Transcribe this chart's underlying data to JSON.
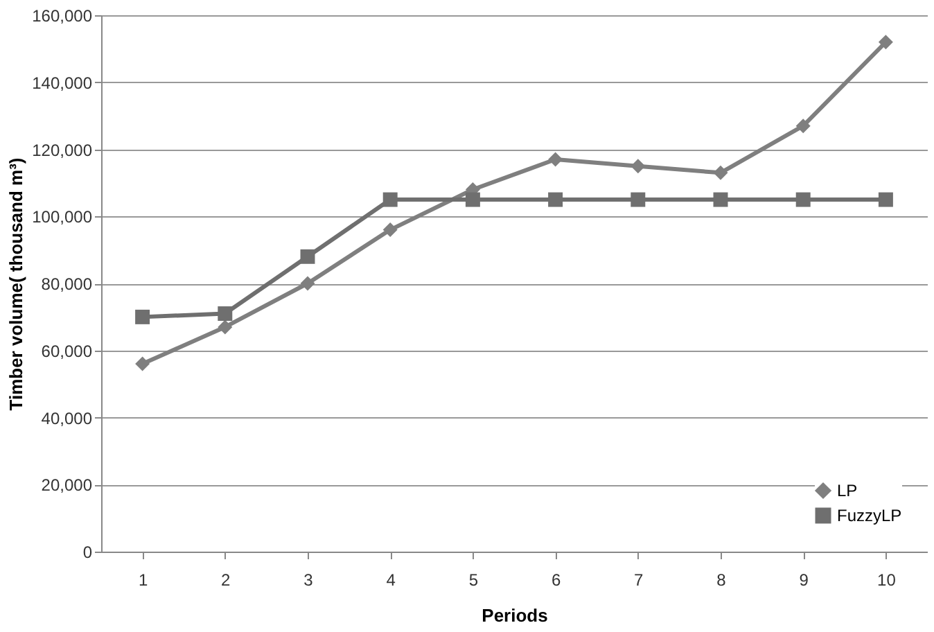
{
  "chart_data": {
    "type": "line",
    "xlabel": "Periods",
    "ylabel": "Timber volume( thousand m³)",
    "categories": [
      "1",
      "2",
      "3",
      "4",
      "5",
      "6",
      "7",
      "8",
      "9",
      "10"
    ],
    "series": [
      {
        "name": "LP",
        "color": "#7f7f7f",
        "marker": "diamond",
        "values": [
          56000,
          67000,
          80000,
          96000,
          108000,
          117000,
          115000,
          113000,
          127000,
          152000
        ]
      },
      {
        "name": "FuzzyLP",
        "color": "#6f6f6f",
        "marker": "square",
        "values": [
          70000,
          71000,
          88000,
          105000,
          105000,
          105000,
          105000,
          105000,
          105000,
          105000
        ]
      }
    ],
    "ylim": [
      0,
      160000
    ],
    "yticks": [
      0,
      {
        "value": 20000,
        "label": "20,000"
      },
      {
        "value": 40000,
        "label": "40,000"
      },
      {
        "value": 60000,
        "label": "60,000"
      },
      {
        "value": 80000,
        "label": "80,000"
      },
      {
        "value": 100000,
        "label": "100,000"
      },
      {
        "value": 120000,
        "label": "120,000"
      },
      {
        "value": 140000,
        "label": "140,000"
      },
      {
        "value": 160000,
        "label": "160,000"
      }
    ],
    "grid": "y",
    "legend": "bottom right"
  }
}
